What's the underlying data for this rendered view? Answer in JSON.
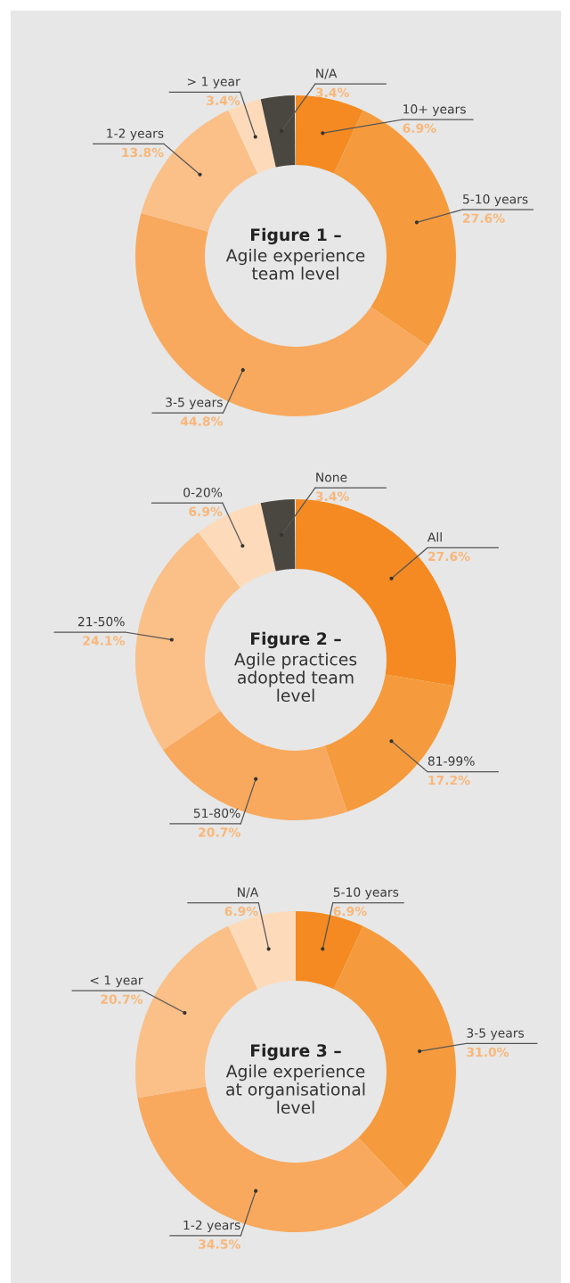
{
  "chart_data": [
    {
      "type": "donut",
      "title": "Figure 1 –",
      "subtitle": "Agile experience\nteam level",
      "value_labels": [
        "6.9%",
        "27.6%",
        "44.8%",
        "13.8%",
        "3.4%",
        "3.4%"
      ],
      "categories": [
        "10+ years",
        "5-10 years",
        "3-5 years",
        "1-2 years",
        "> 1 year",
        "N/A"
      ],
      "values": [
        6.9,
        27.6,
        44.8,
        13.8,
        3.4,
        3.4
      ],
      "colors": [
        "#f48a21",
        "#f59b3d",
        "#f8a95e",
        "#fbbf88",
        "#fddbba",
        "#4a4640"
      ]
    },
    {
      "type": "donut",
      "title": "Figure 2 –",
      "subtitle": "Agile practices\nadopted team\nlevel",
      "value_labels": [
        "27.6%",
        "17.2%",
        "20.7%",
        "24.1%",
        "6.9%",
        "3.4%"
      ],
      "categories": [
        "All",
        "81-99%",
        "51-80%",
        "21-50%",
        "0-20%",
        "None"
      ],
      "values": [
        27.6,
        17.2,
        20.7,
        24.1,
        6.9,
        3.4
      ],
      "colors": [
        "#f48a21",
        "#f59b3d",
        "#f8a95e",
        "#fbbf88",
        "#fddbba",
        "#4a4640"
      ]
    },
    {
      "type": "donut",
      "title": "Figure 3 –",
      "subtitle": "Agile experience\nat organisational\nlevel",
      "value_labels": [
        "6.9%",
        "31.0%",
        "34.5%",
        "20.7%",
        "6.9%"
      ],
      "categories": [
        "5-10 years",
        "3-5 years",
        "1-2 years",
        "< 1 year",
        "N/A"
      ],
      "values": [
        6.9,
        31.0,
        34.5,
        20.7,
        6.9
      ],
      "colors": [
        "#f48a21",
        "#f59b3d",
        "#f8a95e",
        "#fbbf88",
        "#fddbba"
      ]
    }
  ]
}
